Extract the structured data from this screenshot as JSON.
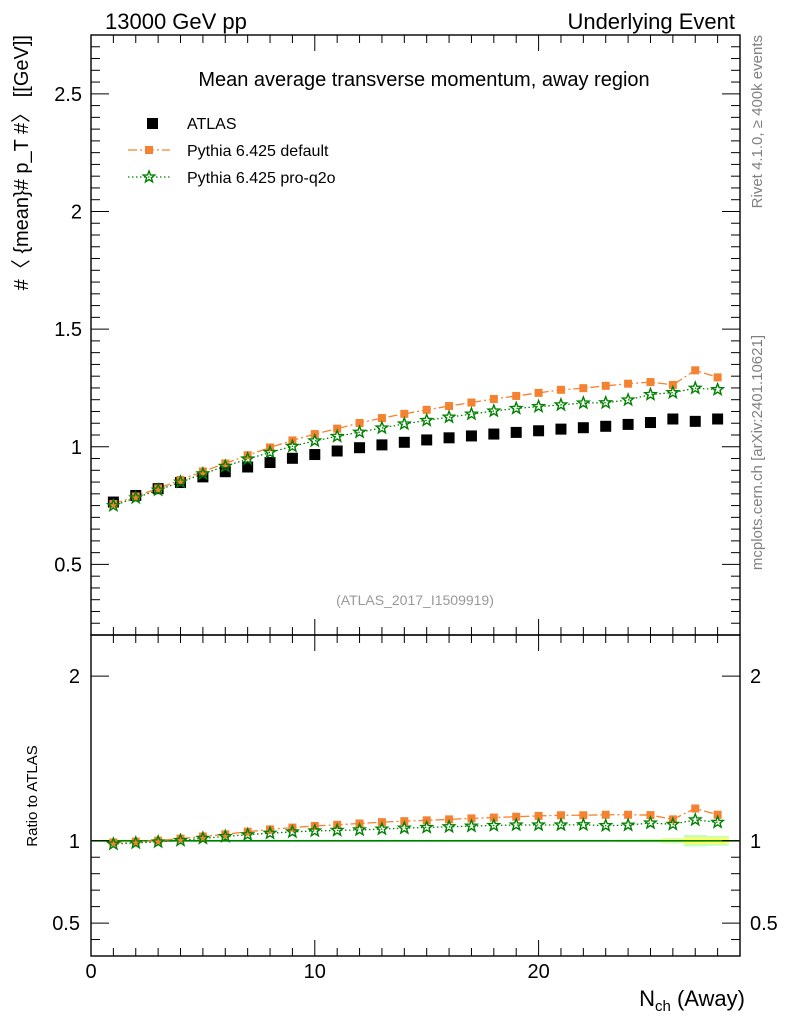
{
  "header": {
    "left": "13000 GeV pp",
    "right": "Underlying Event"
  },
  "side_labels": {
    "rivet": "Rivet 4.1.0, ≥ 400k events",
    "mcplots": "mcplots.cern.ch [arXiv:2401.10621]"
  },
  "colors": {
    "atlas": "#000000",
    "default": "#f58231",
    "proq2o": "#008000",
    "band_inner": "#ffff66",
    "band_outer": "#bfffbf",
    "watermark": "#999999"
  },
  "chart_data": [
    {
      "type": "scatter",
      "title": "Mean average transverse momentum, away region",
      "watermark": "(ATLAS_2017_I1509919)",
      "xlabel": "N",
      "xlabel_sub": "ch",
      "xlabel_suffix": " (Away)",
      "ylabel": "#〈 {mean}# p_T #〉 [[GeV]]",
      "xlim": [
        0,
        29
      ],
      "ylim": [
        0.2,
        2.75
      ],
      "yticks": [
        0.5,
        1,
        1.5,
        2,
        2.5
      ],
      "ytick_labels": [
        "0.5",
        "1",
        "1.5",
        "2",
        "2.5"
      ],
      "xticks": [
        0,
        10,
        20
      ],
      "xtick_labels": [
        "0",
        "10",
        "20"
      ],
      "legend_position": "top-left",
      "x": [
        1,
        2,
        3,
        4,
        5,
        6,
        7,
        8,
        9,
        10,
        11,
        12,
        13,
        14,
        15,
        16,
        17,
        18,
        19,
        20,
        21,
        22,
        23,
        24,
        25,
        26,
        27,
        28
      ],
      "series": [
        {
          "name": "ATLAS",
          "marker": "square",
          "values": [
            0.765,
            0.793,
            0.822,
            0.848,
            0.872,
            0.894,
            0.914,
            0.933,
            0.951,
            0.967,
            0.982,
            0.996,
            1.008,
            1.019,
            1.029,
            1.038,
            1.046,
            1.054,
            1.061,
            1.068,
            1.075,
            1.081,
            1.087,
            1.095,
            1.103,
            1.118,
            1.108,
            1.118
          ]
        },
        {
          "name": "Pythia 6.425 default",
          "marker": "square-small",
          "line": "dashdot",
          "values": [
            0.757,
            0.789,
            0.823,
            0.859,
            0.895,
            0.929,
            0.964,
            0.997,
            1.027,
            1.054,
            1.077,
            1.101,
            1.122,
            1.14,
            1.157,
            1.173,
            1.188,
            1.203,
            1.216,
            1.229,
            1.242,
            1.249,
            1.259,
            1.268,
            1.275,
            1.263,
            1.325,
            1.295
          ]
        },
        {
          "name": "Pythia 6.425 pro-q2o",
          "marker": "star",
          "line": "dotted",
          "values": [
            0.75,
            0.783,
            0.816,
            0.85,
            0.885,
            0.917,
            0.948,
            0.976,
            1.002,
            1.025,
            1.044,
            1.062,
            1.08,
            1.097,
            1.112,
            1.126,
            1.139,
            1.152,
            1.163,
            1.171,
            1.178,
            1.186,
            1.187,
            1.199,
            1.222,
            1.23,
            1.249,
            1.243
          ]
        }
      ]
    },
    {
      "type": "scatter",
      "ylabel": "Ratio to ATLAS",
      "xlim": [
        0,
        29
      ],
      "ylim": [
        0.3,
        2.25
      ],
      "yticks": [
        0.5,
        1,
        2
      ],
      "ytick_labels": [
        "0.5",
        "1",
        "2"
      ],
      "x": [
        1,
        2,
        3,
        4,
        5,
        6,
        7,
        8,
        9,
        10,
        11,
        12,
        13,
        14,
        15,
        16,
        17,
        18,
        19,
        20,
        21,
        22,
        23,
        24,
        25,
        26,
        27,
        28
      ],
      "band_halfwidth_inner": [
        0.004,
        0.004,
        0.004,
        0.004,
        0.004,
        0.004,
        0.004,
        0.004,
        0.004,
        0.004,
        0.004,
        0.004,
        0.004,
        0.004,
        0.004,
        0.004,
        0.004,
        0.004,
        0.004,
        0.004,
        0.004,
        0.004,
        0.004,
        0.005,
        0.006,
        0.01,
        0.02,
        0.02
      ],
      "band_halfwidth_outer": [
        0.006,
        0.006,
        0.006,
        0.006,
        0.006,
        0.006,
        0.006,
        0.006,
        0.006,
        0.006,
        0.006,
        0.006,
        0.006,
        0.006,
        0.006,
        0.006,
        0.006,
        0.006,
        0.006,
        0.006,
        0.006,
        0.006,
        0.006,
        0.008,
        0.01,
        0.015,
        0.035,
        0.03
      ],
      "series": [
        {
          "name": "Pythia 6.425 default",
          "values": [
            0.99,
            0.995,
            1.001,
            1.013,
            1.026,
            1.039,
            1.055,
            1.069,
            1.08,
            1.09,
            1.097,
            1.105,
            1.113,
            1.119,
            1.124,
            1.13,
            1.136,
            1.141,
            1.146,
            1.151,
            1.155,
            1.155,
            1.158,
            1.158,
            1.156,
            1.13,
            1.196,
            1.158
          ]
        },
        {
          "name": "Pythia 6.425 pro-q2o",
          "values": [
            0.98,
            0.987,
            0.993,
            1.002,
            1.015,
            1.026,
            1.037,
            1.046,
            1.054,
            1.06,
            1.063,
            1.066,
            1.071,
            1.077,
            1.081,
            1.085,
            1.089,
            1.093,
            1.096,
            1.096,
            1.096,
            1.097,
            1.092,
            1.095,
            1.108,
            1.1,
            1.127,
            1.112
          ]
        }
      ]
    }
  ]
}
